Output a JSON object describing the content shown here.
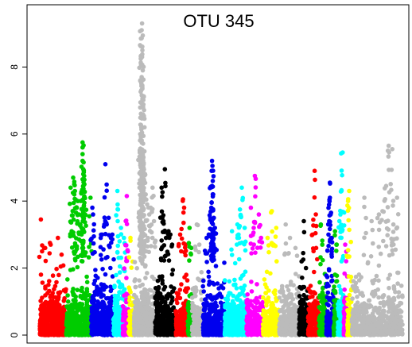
{
  "chart_data": {
    "type": "scatter",
    "title": "OTU 345",
    "xlabel": "",
    "ylabel": "",
    "ylim": [
      0,
      9.5
    ],
    "yticks": [
      0,
      2,
      4,
      6,
      8
    ],
    "grid": false,
    "legend": "none",
    "point_radius": 2.8,
    "series": [
      {
        "color": "#ff0000",
        "n": 520,
        "xr": [
          0.0,
          0.073
        ],
        "peaks": [
          [
            0.003,
            3.45
          ],
          [
            0.012,
            2.6
          ],
          [
            0.028,
            2.75
          ],
          [
            0.06,
            2.4
          ]
        ],
        "max_cluster": [
          [
            0.015,
            2.6
          ],
          [
            0.03,
            2.7
          ],
          [
            0.05,
            2.9
          ]
        ]
      },
      {
        "color": "#00cc00",
        "n": 500,
        "xr": [
          0.073,
          0.142
        ],
        "peaks": [
          [
            0.118,
            5.75
          ],
          [
            0.118,
            5.6
          ],
          [
            0.118,
            5.4
          ],
          [
            0.118,
            5.2
          ],
          [
            0.12,
            4.95
          ],
          [
            0.12,
            4.8
          ],
          [
            0.118,
            4.65
          ],
          [
            0.123,
            4.5
          ],
          [
            0.092,
            4.7
          ],
          [
            0.095,
            4.5
          ],
          [
            0.097,
            4.3
          ],
          [
            0.085,
            4.4
          ],
          [
            0.102,
            3.8
          ],
          [
            0.105,
            4.0
          ],
          [
            0.108,
            3.6
          ],
          [
            0.14,
            4.1
          ],
          [
            0.112,
            3.3
          ],
          [
            0.088,
            3.1
          ]
        ]
      },
      {
        "color": "#0000ee",
        "n": 460,
        "xr": [
          0.142,
          0.203
        ],
        "peaks": [
          [
            0.145,
            3.8
          ],
          [
            0.147,
            3.6
          ],
          [
            0.181,
            5.1
          ],
          [
            0.178,
            3.3
          ],
          [
            0.19,
            3.5
          ],
          [
            0.196,
            2.9
          ],
          [
            0.2,
            3.0
          ],
          [
            0.172,
            3.0
          ],
          [
            0.168,
            2.9
          ]
        ]
      },
      {
        "color": "#00ffff",
        "n": 260,
        "xr": [
          0.203,
          0.237
        ],
        "peaks": [
          [
            0.214,
            4.3
          ],
          [
            0.224,
            3.2
          ],
          [
            0.232,
            2.9
          ],
          [
            0.215,
            3.4
          ]
        ]
      },
      {
        "color": "#ff00ff",
        "n": 100,
        "xr": [
          0.229,
          0.245
        ],
        "peaks": [
          [
            0.24,
            4.15
          ],
          [
            0.237,
            3.4
          ],
          [
            0.243,
            2.5
          ]
        ]
      },
      {
        "color": "#ffff00",
        "n": 90,
        "xr": [
          0.245,
          0.26
        ],
        "peaks": [
          [
            0.25,
            2.9
          ]
        ]
      },
      {
        "color": "#bbbbbb",
        "n": 560,
        "xr": [
          0.26,
          0.318
        ],
        "peaks": [
          [
            0.282,
            9.3
          ],
          [
            0.281,
            9.1
          ],
          [
            0.283,
            8.5
          ],
          [
            0.282,
            8.3
          ],
          [
            0.279,
            8.1
          ],
          [
            0.284,
            7.9
          ],
          [
            0.281,
            7.7
          ],
          [
            0.28,
            7.5
          ],
          [
            0.283,
            7.4
          ],
          [
            0.285,
            6.8
          ],
          [
            0.28,
            6.2
          ],
          [
            0.277,
            6.0
          ],
          [
            0.276,
            5.5
          ],
          [
            0.283,
            5.3
          ],
          [
            0.286,
            5.0
          ],
          [
            0.278,
            4.8
          ],
          [
            0.288,
            4.6
          ],
          [
            0.275,
            4.4
          ],
          [
            0.292,
            4.2
          ],
          [
            0.296,
            3.9
          ],
          [
            0.302,
            3.6
          ],
          [
            0.306,
            3.8
          ],
          [
            0.311,
            4.4
          ],
          [
            0.315,
            3.4
          ]
        ]
      },
      {
        "color": "#000000",
        "n": 380,
        "xr": [
          0.318,
          0.375
        ],
        "peaks": [
          [
            0.345,
            4.95
          ],
          [
            0.336,
            4.4
          ],
          [
            0.338,
            3.5
          ],
          [
            0.341,
            3.4
          ],
          [
            0.355,
            3.1
          ],
          [
            0.36,
            3.0
          ],
          [
            0.365,
            2.7
          ],
          [
            0.348,
            2.9
          ]
        ]
      },
      {
        "color": "#ff0000",
        "n": 240,
        "xr": [
          0.375,
          0.41
        ],
        "peaks": [
          [
            0.395,
            4.05
          ],
          [
            0.398,
            3.8
          ],
          [
            0.387,
            3.0
          ],
          [
            0.402,
            2.7
          ],
          [
            0.39,
            2.5
          ]
        ]
      },
      {
        "color": "#00cc00",
        "n": 110,
        "xr": [
          0.408,
          0.422
        ],
        "peaks": [
          [
            0.413,
            3.2
          ],
          [
            0.418,
            2.6
          ]
        ]
      },
      {
        "color": "#bbbbbb",
        "n": 160,
        "xr": [
          0.42,
          0.45
        ],
        "peaks": [
          [
            0.433,
            3.3
          ],
          [
            0.44,
            2.7
          ]
        ]
      },
      {
        "color": "#0000ee",
        "n": 360,
        "xr": [
          0.45,
          0.51
        ],
        "peaks": [
          [
            0.475,
            5.2
          ],
          [
            0.476,
            5.05
          ],
          [
            0.474,
            4.9
          ],
          [
            0.477,
            4.6
          ],
          [
            0.475,
            4.45
          ],
          [
            0.478,
            4.2
          ],
          [
            0.474,
            3.95
          ],
          [
            0.473,
            3.8
          ],
          [
            0.472,
            3.7
          ],
          [
            0.48,
            3.5
          ],
          [
            0.483,
            3.2
          ],
          [
            0.46,
            2.9
          ],
          [
            0.466,
            3.0
          ]
        ]
      },
      {
        "color": "#00ffff",
        "n": 340,
        "xr": [
          0.51,
          0.57
        ],
        "peaks": [
          [
            0.557,
            4.4
          ],
          [
            0.552,
            3.75
          ],
          [
            0.545,
            3.3
          ],
          [
            0.53,
            3.1
          ],
          [
            0.548,
            3.0
          ],
          [
            0.565,
            3.2
          ]
        ]
      },
      {
        "color": "#ff00ff",
        "n": 240,
        "xr": [
          0.57,
          0.615
        ],
        "peaks": [
          [
            0.593,
            4.75
          ],
          [
            0.582,
            3.8
          ],
          [
            0.604,
            3.6
          ],
          [
            0.59,
            3.2
          ],
          [
            0.61,
            2.9
          ]
        ]
      },
      {
        "color": "#ffff00",
        "n": 220,
        "xr": [
          0.615,
          0.66
        ],
        "peaks": [
          [
            0.64,
            3.7
          ],
          [
            0.652,
            3.2
          ],
          [
            0.628,
            2.9
          ],
          [
            0.645,
            2.7
          ]
        ]
      },
      {
        "color": "#bbbbbb",
        "n": 280,
        "xr": [
          0.66,
          0.715
        ],
        "peaks": [
          [
            0.678,
            3.3
          ],
          [
            0.69,
            2.9
          ],
          [
            0.705,
            2.6
          ]
        ]
      },
      {
        "color": "#000000",
        "n": 180,
        "xr": [
          0.715,
          0.74
        ],
        "peaks": [
          [
            0.728,
            3.4
          ],
          [
            0.722,
            2.2
          ],
          [
            0.734,
            2.0
          ]
        ]
      },
      {
        "color": "#ff0000",
        "n": 200,
        "xr": [
          0.74,
          0.77
        ],
        "peaks": [
          [
            0.758,
            4.9
          ],
          [
            0.752,
            3.0
          ],
          [
            0.762,
            2.6
          ]
        ]
      },
      {
        "color": "#00cc00",
        "n": 160,
        "xr": [
          0.77,
          0.79
        ],
        "peaks": [
          [
            0.775,
            3.3
          ],
          [
            0.779,
            2.7
          ]
        ]
      },
      {
        "color": "#0000ee",
        "n": 180,
        "xr": [
          0.79,
          0.81
        ],
        "peaks": [
          [
            0.8,
            4.55
          ],
          [
            0.8,
            4.1
          ],
          [
            0.802,
            3.6
          ],
          [
            0.798,
            3.4
          ],
          [
            0.796,
            3.0
          ],
          [
            0.805,
            2.9
          ]
        ]
      },
      {
        "color": "#00cc00",
        "n": 100,
        "xr": [
          0.81,
          0.822
        ],
        "peaks": [
          [
            0.814,
            3.1
          ],
          [
            0.818,
            2.7
          ]
        ]
      },
      {
        "color": "#00ffff",
        "n": 140,
        "xr": [
          0.822,
          0.84
        ],
        "peaks": [
          [
            0.835,
            5.45
          ],
          [
            0.832,
            4.3
          ],
          [
            0.829,
            3.6
          ],
          [
            0.826,
            3.4
          ]
        ]
      },
      {
        "color": "#ff00ff",
        "n": 90,
        "xr": [
          0.838,
          0.848
        ],
        "peaks": [
          [
            0.842,
            2.7
          ]
        ]
      },
      {
        "color": "#ffff00",
        "n": 110,
        "xr": [
          0.848,
          0.86
        ],
        "peaks": [
          [
            0.853,
            4.3
          ],
          [
            0.85,
            4.0
          ]
        ]
      },
      {
        "color": "#bbbbbb",
        "n": 600,
        "xr": [
          0.86,
          1.0
        ],
        "peaks": [
          [
            0.962,
            5.65
          ],
          [
            0.972,
            5.55
          ],
          [
            0.955,
            4.45
          ],
          [
            0.985,
            4.1
          ],
          [
            0.895,
            4.1
          ],
          [
            0.935,
            3.6
          ],
          [
            0.975,
            3.3
          ],
          [
            0.915,
            3.4
          ],
          [
            0.945,
            3.7
          ]
        ]
      }
    ]
  }
}
